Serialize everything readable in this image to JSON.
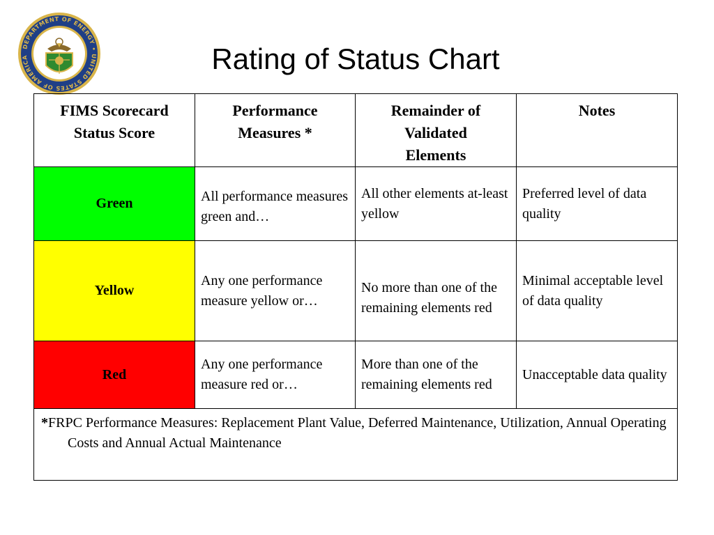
{
  "slide": {
    "title": "Rating of Status Chart",
    "seal": {
      "text": "DEPARTMENT OF ENERGY • UNITED STATES OF AMERICA",
      "colors": {
        "ring": "#1f3f86",
        "gold": "#d9b54a",
        "shield_green": "#2f8a2f"
      }
    }
  },
  "table": {
    "headers": [
      "FIMS Scorecard Status Score",
      "Performance Measures *",
      "Remainder of Validated Elements",
      "Notes"
    ],
    "rows": [
      {
        "status": "Green",
        "color": "#00ff00",
        "performance": "All performance measures green and…",
        "remainder": "All other elements at-least yellow",
        "notes": "Preferred level of data quality"
      },
      {
        "status": "Yellow",
        "color": "#ffff00",
        "performance": "Any one performance measure yellow or…",
        "remainder": "No more than one of the remaining elements red",
        "notes": "Minimal acceptable level of data quality"
      },
      {
        "status": "Red",
        "color": "#ff0000",
        "performance": "Any one performance measure red or…",
        "remainder": "More than one of the remaining elements red",
        "notes": "Unacceptable data quality"
      }
    ],
    "footnote_marker": "*",
    "footnote": "FRPC Performance Measures: Replacement Plant Value, Deferred Maintenance, Utilization, Annual Operating Costs and Annual Actual Maintenance"
  }
}
